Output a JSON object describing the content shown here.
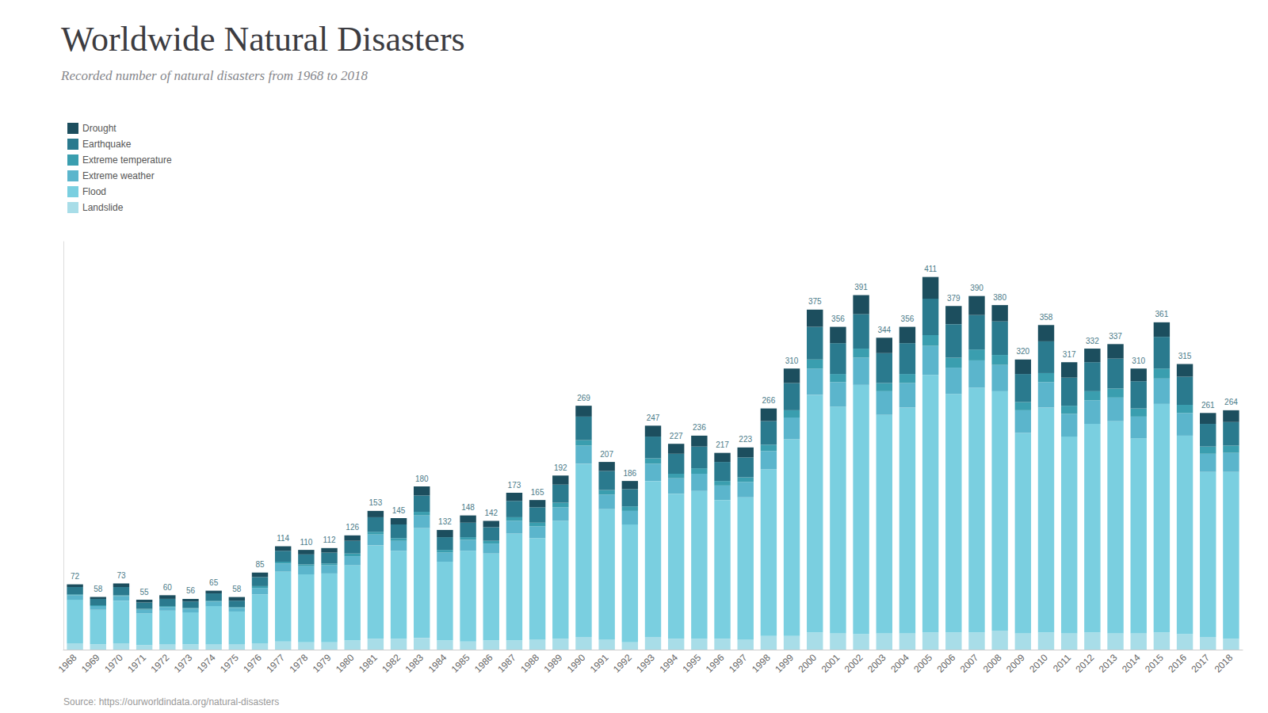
{
  "chart_data": {
    "type": "bar",
    "title": "Worldwide Natural Disasters",
    "subtitle": "Recorded number of natural disasters from 1968 to 2018",
    "annotations": [
      "Source: https://ourworldindata.org/natural-disasters"
    ],
    "categories": [
      "1968",
      "1969",
      "1970",
      "1971",
      "1972",
      "1973",
      "1974",
      "1975",
      "1976",
      "1977",
      "1978",
      "1979",
      "1980",
      "1981",
      "1982",
      "1983",
      "1984",
      "1985",
      "1986",
      "1987",
      "1988",
      "1989",
      "1990",
      "1991",
      "1992",
      "1993",
      "1994",
      "1995",
      "1996",
      "1997",
      "1998",
      "1999",
      "2000",
      "2001",
      "2002",
      "2003",
      "2004",
      "2005",
      "2006",
      "2007",
      "2008",
      "2009",
      "2010",
      "2011",
      "2012",
      "2013",
      "2014",
      "2015",
      "2016",
      "2017",
      "2018"
    ],
    "series": [
      {
        "name": "Landslide",
        "color": "#A8DDE8",
        "values": [
          7,
          6,
          7,
          5,
          6,
          6,
          6,
          6,
          7,
          9,
          8,
          8,
          10,
          12,
          12,
          13,
          10,
          9,
          10,
          10,
          11,
          12,
          14,
          11,
          8,
          14,
          12,
          12,
          12,
          11,
          15,
          15,
          19,
          18,
          17,
          18,
          18,
          19,
          19,
          19,
          21,
          18,
          19,
          18,
          19,
          18,
          18,
          19,
          17,
          14,
          12
        ]
      },
      {
        "name": "Flood",
        "color": "#7ACFE0",
        "values": [
          48,
          38,
          47,
          35,
          37,
          35,
          42,
          36,
          54,
          77,
          75,
          76,
          83,
          103,
          97,
          121,
          87,
          100,
          96,
          118,
          112,
          130,
          191,
          144,
          130,
          172,
          160,
          163,
          153,
          157,
          184,
          217,
          262,
          250,
          275,
          241,
          249,
          284,
          263,
          270,
          264,
          221,
          248,
          217,
          230,
          234,
          215,
          252,
          219,
          182,
          184
        ]
      },
      {
        "name": "Extreme weather",
        "color": "#5BB5CC",
        "values": [
          5,
          4,
          5,
          4,
          4,
          4,
          5,
          4,
          7,
          9,
          9,
          9,
          10,
          12,
          11,
          14,
          10,
          12,
          11,
          14,
          13,
          15,
          20,
          16,
          15,
          19,
          17,
          19,
          16,
          17,
          20,
          24,
          29,
          27,
          30,
          26,
          27,
          32,
          29,
          30,
          29,
          25,
          28,
          25,
          26,
          26,
          24,
          28,
          25,
          20,
          21
        ]
      },
      {
        "name": "Extreme temperature",
        "color": "#3A9EAF",
        "values": [
          1,
          1,
          1,
          1,
          1,
          1,
          1,
          1,
          2,
          2,
          2,
          2,
          3,
          3,
          3,
          4,
          3,
          3,
          3,
          4,
          4,
          5,
          6,
          5,
          5,
          6,
          5,
          6,
          5,
          5,
          7,
          8,
          10,
          9,
          10,
          9,
          10,
          12,
          11,
          12,
          11,
          9,
          10,
          9,
          10,
          10,
          9,
          11,
          9,
          8,
          8
        ]
      },
      {
        "name": "Earthquake",
        "color": "#2A7A8E",
        "values": [
          8,
          7,
          9,
          7,
          8,
          7,
          8,
          7,
          10,
          12,
          11,
          12,
          14,
          16,
          15,
          18,
          14,
          16,
          15,
          18,
          17,
          20,
          26,
          21,
          19,
          24,
          22,
          24,
          21,
          22,
          26,
          30,
          36,
          34,
          38,
          33,
          34,
          40,
          37,
          38,
          37,
          31,
          35,
          31,
          32,
          33,
          30,
          35,
          31,
          25,
          26
        ]
      },
      {
        "name": "Drought",
        "color": "#1C4E5E",
        "values": [
          3,
          2,
          4,
          3,
          4,
          3,
          3,
          4,
          5,
          5,
          5,
          5,
          6,
          7,
          7,
          10,
          8,
          8,
          7,
          9,
          8,
          10,
          12,
          10,
          9,
          12,
          11,
          12,
          10,
          11,
          14,
          16,
          19,
          18,
          21,
          17,
          18,
          24,
          20,
          21,
          18,
          16,
          18,
          17,
          15,
          16,
          14,
          16,
          14,
          12,
          13
        ]
      }
    ],
    "totals": [
      72,
      58,
      73,
      55,
      60,
      56,
      65,
      58,
      85,
      114,
      110,
      112,
      126,
      153,
      145,
      180,
      132,
      148,
      142,
      173,
      165,
      192,
      269,
      207,
      186,
      247,
      227,
      236,
      217,
      223,
      266,
      310,
      375,
      356,
      391,
      344,
      356,
      411,
      379,
      390,
      380,
      320,
      358,
      317,
      332,
      337,
      310,
      361,
      315,
      261,
      264
    ],
    "ylim": [
      0,
      450
    ],
    "stacked": true,
    "grid": false,
    "legend": "upper left",
    "tick_labels": "x"
  }
}
